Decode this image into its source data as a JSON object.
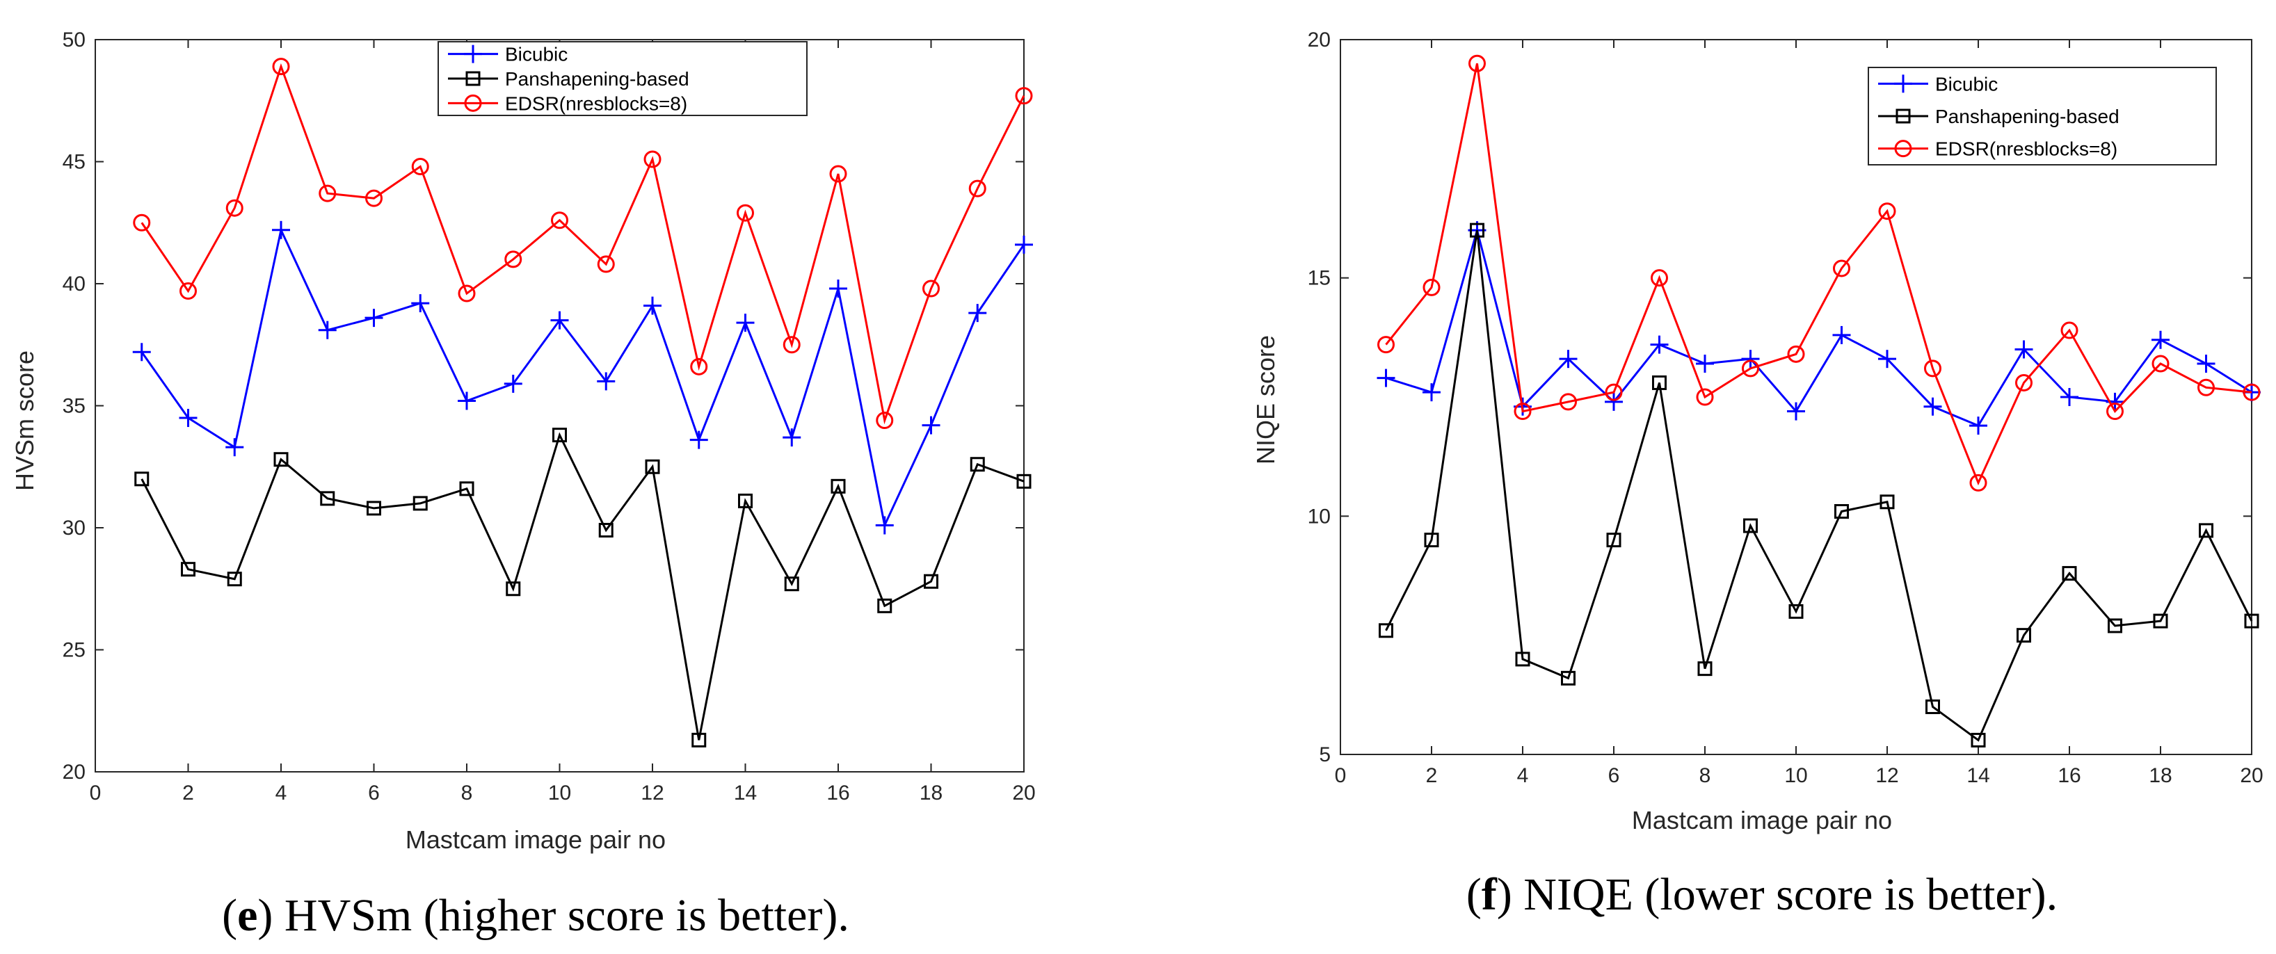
{
  "chart_data": [
    {
      "type": "line",
      "caption": {
        "open": "(",
        "letter": "e",
        "rest": ") HVSm (higher score is better)."
      },
      "xlabel": "Mastcam image pair no",
      "ylabel": "HVSm score",
      "xlim": [
        0,
        20
      ],
      "ylim": [
        20,
        50
      ],
      "xticks": [
        0,
        2,
        4,
        6,
        8,
        10,
        12,
        14,
        16,
        18,
        20
      ],
      "yticks": [
        20,
        25,
        30,
        35,
        40,
        45,
        50
      ],
      "grid": false,
      "legend_position": "top-center",
      "x": [
        1,
        2,
        3,
        4,
        5,
        6,
        7,
        8,
        9,
        10,
        11,
        12,
        13,
        14,
        15,
        16,
        17,
        18,
        19,
        20
      ],
      "series": [
        {
          "name": "Bicubic",
          "color": "#0000ff",
          "marker": "plus",
          "values": [
            37.2,
            34.5,
            33.3,
            42.2,
            38.1,
            38.6,
            39.2,
            35.2,
            35.9,
            38.5,
            36.0,
            39.1,
            33.6,
            38.4,
            33.7,
            39.8,
            30.1,
            34.2,
            38.8,
            41.6
          ]
        },
        {
          "name": "Panshapening-based",
          "color": "#000000",
          "marker": "square",
          "values": [
            32.0,
            28.3,
            27.9,
            32.8,
            31.2,
            30.8,
            31.0,
            31.6,
            27.5,
            33.8,
            29.9,
            32.5,
            21.3,
            31.1,
            27.7,
            31.7,
            26.8,
            27.8,
            32.6,
            31.9
          ]
        },
        {
          "name": "EDSR(nresblocks=8)",
          "color": "#ff0000",
          "marker": "circle",
          "values": [
            42.5,
            39.7,
            43.1,
            48.9,
            43.7,
            43.5,
            44.8,
            39.6,
            41.0,
            42.6,
            40.8,
            45.1,
            36.6,
            42.9,
            37.5,
            44.5,
            34.4,
            39.8,
            43.9,
            47.7
          ]
        }
      ]
    },
    {
      "type": "line",
      "caption": {
        "open": "(",
        "letter": "f",
        "rest": ") NIQE (lower score is better)."
      },
      "xlabel": "Mastcam image pair no",
      "ylabel": "NIQE score",
      "xlim": [
        0,
        20
      ],
      "ylim": [
        5,
        20
      ],
      "xticks": [
        0,
        2,
        4,
        6,
        8,
        10,
        12,
        14,
        16,
        18,
        20
      ],
      "yticks": [
        5,
        10,
        15,
        20
      ],
      "grid": false,
      "legend_position": "top-right",
      "x": [
        1,
        2,
        3,
        4,
        5,
        6,
        7,
        8,
        9,
        10,
        11,
        12,
        13,
        14,
        15,
        16,
        17,
        18,
        19,
        20
      ],
      "series": [
        {
          "name": "Bicubic",
          "color": "#0000ff",
          "marker": "plus",
          "values": [
            12.9,
            12.6,
            16.0,
            12.3,
            13.3,
            12.4,
            13.6,
            13.2,
            13.3,
            12.2,
            13.8,
            13.3,
            12.3,
            11.9,
            13.5,
            12.5,
            12.4,
            13.7,
            13.2,
            12.6
          ]
        },
        {
          "name": "Panshapening-based",
          "color": "#000000",
          "marker": "square",
          "values": [
            7.6,
            9.5,
            16.0,
            7.0,
            6.6,
            9.5,
            12.8,
            6.8,
            9.8,
            8.0,
            10.1,
            10.3,
            6.0,
            5.3,
            7.5,
            8.8,
            7.7,
            7.8,
            9.7,
            7.8
          ]
        },
        {
          "name": "EDSR(nresblocks=8)",
          "color": "#ff0000",
          "marker": "circle",
          "values": [
            13.6,
            14.8,
            19.5,
            12.2,
            12.4,
            12.6,
            15.0,
            12.5,
            13.1,
            13.4,
            15.2,
            16.4,
            13.1,
            10.7,
            12.8,
            13.9,
            12.2,
            13.2,
            12.7,
            12.6
          ]
        }
      ]
    }
  ]
}
